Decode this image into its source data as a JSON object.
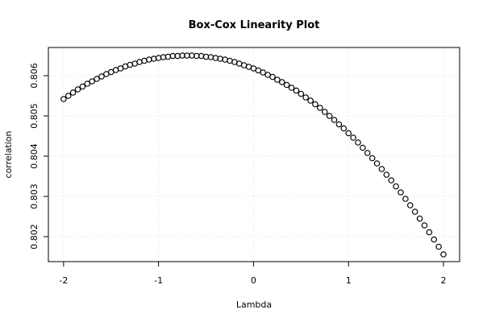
{
  "chart_data": {
    "type": "scatter",
    "title": "Box-Cox Linearity Plot",
    "x_label": "Lambda",
    "y_label": "correlation",
    "x": [
      -2,
      -1.95,
      -1.9,
      -1.85,
      -1.8,
      -1.75,
      -1.7,
      -1.65,
      -1.6,
      -1.55,
      -1.5,
      -1.45,
      -1.4,
      -1.35,
      -1.3,
      -1.25,
      -1.2,
      -1.15,
      -1.1,
      -1.05,
      -1,
      -0.95,
      -0.9,
      -0.85,
      -0.8,
      -0.75,
      -0.7,
      -0.65,
      -0.6,
      -0.55,
      -0.5,
      -0.45,
      -0.4,
      -0.35,
      -0.3,
      -0.25,
      -0.2,
      -0.15,
      -0.1,
      -0.05,
      0,
      0.05,
      0.1,
      0.15,
      0.2,
      0.25,
      0.3,
      0.35,
      0.4,
      0.45,
      0.5,
      0.55,
      0.6,
      0.65,
      0.7,
      0.75,
      0.8,
      0.85,
      0.9,
      0.95,
      1,
      1.05,
      1.1,
      1.15,
      1.2,
      1.25,
      1.3,
      1.35,
      1.4,
      1.45,
      1.5,
      1.55,
      1.6,
      1.65,
      1.7,
      1.75,
      1.8,
      1.85,
      1.9,
      1.95,
      2
    ],
    "values": [
      0.80542,
      0.8055,
      0.80558,
      0.80566,
      0.80573,
      0.8058,
      0.80586,
      0.80592,
      0.80598,
      0.80604,
      0.80609,
      0.80614,
      0.80618,
      0.80623,
      0.80627,
      0.8063,
      0.80634,
      0.80637,
      0.8064,
      0.80642,
      0.80644,
      0.80646,
      0.80647,
      0.80649,
      0.80649,
      0.8065,
      0.8065,
      0.8065,
      0.80649,
      0.80649,
      0.80647,
      0.80646,
      0.80644,
      0.80642,
      0.8064,
      0.80637,
      0.80634,
      0.8063,
      0.80626,
      0.80622,
      0.80618,
      0.80613,
      0.80608,
      0.80602,
      0.80597,
      0.8059,
      0.80584,
      0.80577,
      0.8057,
      0.80563,
      0.80555,
      0.80546,
      0.80538,
      0.80529,
      0.8052,
      0.8051,
      0.805,
      0.8049,
      0.80479,
      0.80469,
      0.80457,
      0.80446,
      0.80434,
      0.80421,
      0.80408,
      0.80395,
      0.80382,
      0.80368,
      0.80354,
      0.8034,
      0.80325,
      0.8031,
      0.80294,
      0.80278,
      0.80262,
      0.80245,
      0.80228,
      0.80211,
      0.80193,
      0.80175,
      0.80156
    ],
    "color": "#000000",
    "xlim": [
      -2.16,
      2.17
    ],
    "ylim": [
      0.80138,
      0.8067
    ],
    "xticks": [
      -2,
      -1,
      0,
      1,
      2
    ],
    "yticks": [
      0.802,
      0.803,
      0.804,
      0.805,
      0.806
    ],
    "grid": true
  }
}
